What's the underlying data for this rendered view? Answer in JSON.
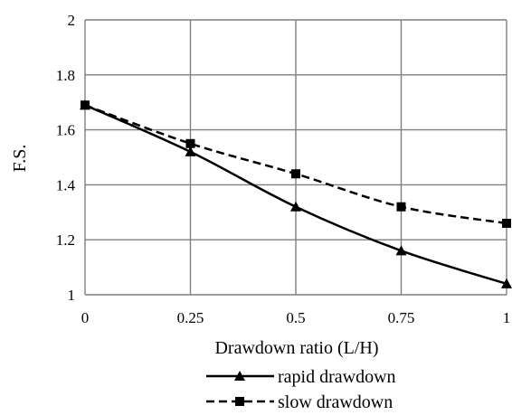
{
  "chart_data": {
    "type": "line",
    "x": [
      0,
      0.25,
      0.5,
      0.75,
      1
    ],
    "xticks": [
      "0",
      "0.25",
      "0.5",
      "0.75",
      "1"
    ],
    "yticks": [
      "1",
      "1.2",
      "1.4",
      "1.6",
      "1.8",
      "2"
    ],
    "xlim": [
      0,
      1
    ],
    "ylim": [
      1,
      2
    ],
    "xlabel": "Drawdown ratio (L/H)",
    "ylabel": "F.S.",
    "grid": true,
    "legend_position": "bottom",
    "series": [
      {
        "name": "rapid drawdown",
        "values": [
          1.69,
          1.52,
          1.32,
          1.16,
          1.04
        ],
        "marker": "triangle",
        "dash": "solid",
        "color": "#000000"
      },
      {
        "name": "slow drawdown",
        "values": [
          1.69,
          1.55,
          1.44,
          1.32,
          1.26
        ],
        "marker": "square",
        "dash": "dashed",
        "color": "#000000"
      }
    ]
  }
}
